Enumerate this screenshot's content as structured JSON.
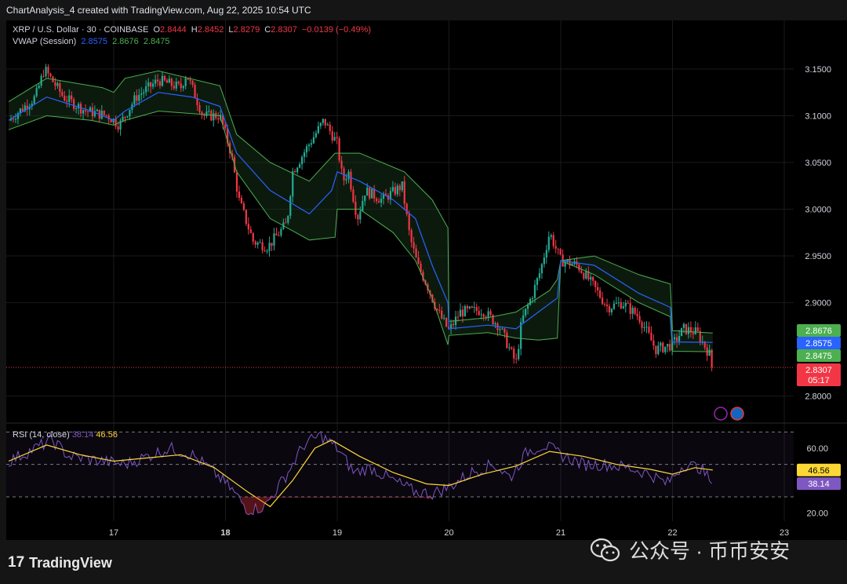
{
  "header": {
    "title": "ChartAnalysis_4 created with TradingView.com, Aug 22, 2025 10:54 UTC"
  },
  "legend": {
    "symbol": "XRP / U.S. Dollar · 30 · COINBASE",
    "o_label": "O",
    "o_value": "2.8444",
    "h_label": "H",
    "h_value": "2.8452",
    "l_label": "L",
    "l_value": "2.8279",
    "c_label": "C",
    "c_value": "2.8307",
    "change": "−0.0139 (−0.49%)",
    "vwap_label": "VWAP (Session)",
    "vwap_values": [
      "2.8575",
      "2.8676",
      "2.8475"
    ]
  },
  "rsi_legend": {
    "label": "RSI (14, close)",
    "value": "38.14",
    "ma_value": "46.56"
  },
  "colors": {
    "up": "#22ab94",
    "down": "#f23645",
    "vwap": "#2962ff",
    "band_upper": "#4caf50",
    "band_lower": "#4caf50",
    "rsi": "#7e57c2",
    "rsi_ma": "#fdd835",
    "price_line": "#f23645",
    "background": "#000000"
  },
  "price_tags": [
    {
      "name": "band-upper-tag",
      "text": "2.8676",
      "color": "#4caf50"
    },
    {
      "name": "vwap-tag",
      "text": "2.8575",
      "color": "#2962ff"
    },
    {
      "name": "band-lower-tag",
      "text": "2.8475",
      "color": "#4caf50"
    },
    {
      "name": "last-price-tag",
      "text": "2.8307",
      "color": "#f23645"
    },
    {
      "name": "countdown-tag",
      "text": "05:17",
      "color": "#f23645"
    }
  ],
  "rsi_tags": [
    {
      "name": "rsi-ma-tag",
      "text": "46.56",
      "color": "#fdd835",
      "textColor": "#000000"
    },
    {
      "name": "rsi-tag",
      "text": "38.14",
      "color": "#7e57c2",
      "textColor": "#ffffff"
    }
  ],
  "branding": {
    "logo_mark": "17",
    "logo_text": "TradingView",
    "watermark": "公众号 · 币币安安"
  },
  "chart_data": {
    "type": "candlestick",
    "symbol": "XRP / U.S. Dollar",
    "interval": "30",
    "exchange": "COINBASE",
    "last_price": 2.8307,
    "countdown": "05:17",
    "x_ticks": [
      "17",
      "18",
      "19",
      "20",
      "21",
      "22",
      "23"
    ],
    "x_tick_bold": [
      "18"
    ],
    "y_ticks": [
      "3.1500",
      "3.1000",
      "3.0500",
      "3.0000",
      "2.9500",
      "2.9000",
      "2.8000"
    ],
    "ylim": [
      2.772,
      3.202
    ],
    "xlim": [
      16.06,
      23.0
    ],
    "price_path": [
      [
        16.06,
        3.095
      ],
      [
        16.3,
        3.12
      ],
      [
        16.38,
        3.15
      ],
      [
        16.55,
        3.12
      ],
      [
        16.75,
        3.105
      ],
      [
        16.95,
        3.1
      ],
      [
        17.05,
        3.09
      ],
      [
        17.2,
        3.12
      ],
      [
        17.4,
        3.138
      ],
      [
        17.6,
        3.13
      ],
      [
        17.65,
        3.145
      ],
      [
        17.8,
        3.1
      ],
      [
        17.95,
        3.1
      ],
      [
        18.05,
        3.06
      ],
      [
        18.12,
        3.01
      ],
      [
        18.25,
        2.965
      ],
      [
        18.38,
        2.96
      ],
      [
        18.55,
        2.985
      ],
      [
        18.6,
        3.04
      ],
      [
        18.75,
        3.07
      ],
      [
        18.88,
        3.095
      ],
      [
        19.0,
        3.07
      ],
      [
        19.05,
        3.03
      ],
      [
        19.1,
        3.04
      ],
      [
        19.18,
        2.99
      ],
      [
        19.25,
        3.02
      ],
      [
        19.4,
        3.01
      ],
      [
        19.58,
        3.025
      ],
      [
        19.65,
        2.97
      ],
      [
        19.72,
        2.94
      ],
      [
        19.8,
        2.92
      ],
      [
        19.9,
        2.89
      ],
      [
        20.0,
        2.87
      ],
      [
        20.1,
        2.89
      ],
      [
        20.3,
        2.892
      ],
      [
        20.45,
        2.875
      ],
      [
        20.6,
        2.835
      ],
      [
        20.65,
        2.88
      ],
      [
        20.75,
        2.91
      ],
      [
        20.82,
        2.935
      ],
      [
        20.9,
        2.975
      ],
      [
        21.0,
        2.945
      ],
      [
        21.15,
        2.94
      ],
      [
        21.28,
        2.92
      ],
      [
        21.42,
        2.895
      ],
      [
        21.55,
        2.9
      ],
      [
        21.7,
        2.885
      ],
      [
        21.85,
        2.85
      ],
      [
        22.0,
        2.855
      ],
      [
        22.1,
        2.872
      ],
      [
        22.22,
        2.868
      ],
      [
        22.33,
        2.845
      ],
      [
        22.36,
        2.8307
      ]
    ],
    "vwap_path": [
      [
        16.06,
        3.095
      ],
      [
        16.4,
        3.12
      ],
      [
        16.8,
        3.105
      ],
      [
        17.0,
        3.095
      ],
      [
        17.1,
        3.105
      ],
      [
        17.4,
        3.125
      ],
      [
        17.7,
        3.12
      ],
      [
        17.95,
        3.11
      ],
      [
        18.1,
        3.06
      ],
      [
        18.4,
        3.02
      ],
      [
        18.75,
        2.995
      ],
      [
        18.95,
        3.02
      ],
      [
        19.0,
        3.04
      ],
      [
        19.2,
        3.03
      ],
      [
        19.5,
        3.01
      ],
      [
        19.7,
        2.99
      ],
      [
        19.85,
        2.94
      ],
      [
        19.99,
        2.9
      ],
      [
        20.0,
        2.872
      ],
      [
        20.35,
        2.876
      ],
      [
        20.6,
        2.872
      ],
      [
        20.8,
        2.89
      ],
      [
        20.97,
        2.905
      ],
      [
        21.0,
        2.945
      ],
      [
        21.3,
        2.94
      ],
      [
        21.7,
        2.91
      ],
      [
        21.98,
        2.895
      ],
      [
        22.0,
        2.858
      ],
      [
        22.36,
        2.8575
      ]
    ],
    "band_upper_path": [
      [
        16.06,
        3.115
      ],
      [
        16.4,
        3.14
      ],
      [
        16.9,
        3.13
      ],
      [
        17.0,
        3.125
      ],
      [
        17.1,
        3.14
      ],
      [
        17.4,
        3.148
      ],
      [
        17.95,
        3.132
      ],
      [
        18.1,
        3.08
      ],
      [
        18.4,
        3.05
      ],
      [
        18.75,
        3.03
      ],
      [
        18.98,
        3.06
      ],
      [
        19.0,
        3.06
      ],
      [
        19.2,
        3.06
      ],
      [
        19.6,
        3.04
      ],
      [
        19.85,
        3.01
      ],
      [
        19.99,
        2.98
      ],
      [
        20.0,
        2.88
      ],
      [
        20.35,
        2.884
      ],
      [
        20.6,
        2.89
      ],
      [
        20.9,
        2.913
      ],
      [
        20.97,
        2.925
      ],
      [
        21.0,
        2.945
      ],
      [
        21.3,
        2.95
      ],
      [
        21.7,
        2.93
      ],
      [
        21.98,
        2.92
      ],
      [
        22.0,
        2.87
      ],
      [
        22.36,
        2.8676
      ]
    ],
    "band_lower_path": [
      [
        16.06,
        3.085
      ],
      [
        16.4,
        3.1
      ],
      [
        16.8,
        3.095
      ],
      [
        17.0,
        3.09
      ],
      [
        17.1,
        3.095
      ],
      [
        17.4,
        3.105
      ],
      [
        17.95,
        3.1
      ],
      [
        18.1,
        3.04
      ],
      [
        18.4,
        2.99
      ],
      [
        18.75,
        2.967
      ],
      [
        18.98,
        2.97
      ],
      [
        19.0,
        3.0
      ],
      [
        19.2,
        3.0
      ],
      [
        19.5,
        2.975
      ],
      [
        19.7,
        2.945
      ],
      [
        19.85,
        2.905
      ],
      [
        19.99,
        2.855
      ],
      [
        20.0,
        2.865
      ],
      [
        20.35,
        2.868
      ],
      [
        20.6,
        2.862
      ],
      [
        20.8,
        2.86
      ],
      [
        20.97,
        2.862
      ],
      [
        21.0,
        2.945
      ],
      [
        21.3,
        2.93
      ],
      [
        21.7,
        2.9
      ],
      [
        21.98,
        2.885
      ],
      [
        22.0,
        2.848
      ],
      [
        22.36,
        2.8475
      ]
    ],
    "rsi": {
      "label": "RSI (14, close)",
      "ticks": [
        "60.00",
        "20.00"
      ],
      "bands": [
        70,
        50,
        30
      ],
      "ylim": [
        15,
        75
      ],
      "value": 38.14,
      "ma": 46.56,
      "rsi_path": [
        [
          16.06,
          52
        ],
        [
          16.3,
          60
        ],
        [
          16.45,
          65
        ],
        [
          16.6,
          55
        ],
        [
          16.9,
          52
        ],
        [
          17.1,
          50
        ],
        [
          17.3,
          55
        ],
        [
          17.5,
          60
        ],
        [
          17.7,
          56
        ],
        [
          17.9,
          45
        ],
        [
          18.05,
          35
        ],
        [
          18.2,
          22
        ],
        [
          18.35,
          24
        ],
        [
          18.55,
          44
        ],
        [
          18.7,
          62
        ],
        [
          18.85,
          68
        ],
        [
          19.0,
          60
        ],
        [
          19.15,
          45
        ],
        [
          19.3,
          48
        ],
        [
          19.5,
          40
        ],
        [
          19.7,
          33
        ],
        [
          19.85,
          32
        ],
        [
          20.0,
          36
        ],
        [
          20.2,
          45
        ],
        [
          20.4,
          50
        ],
        [
          20.55,
          42
        ],
        [
          20.7,
          58
        ],
        [
          20.85,
          62
        ],
        [
          21.0,
          56
        ],
        [
          21.2,
          50
        ],
        [
          21.4,
          50
        ],
        [
          21.6,
          48
        ],
        [
          21.8,
          44
        ],
        [
          21.95,
          38
        ],
        [
          22.1,
          50
        ],
        [
          22.25,
          48
        ],
        [
          22.36,
          38.14
        ]
      ],
      "ma_path": [
        [
          16.06,
          52
        ],
        [
          16.4,
          62
        ],
        [
          16.7,
          56
        ],
        [
          17.0,
          52
        ],
        [
          17.3,
          54
        ],
        [
          17.6,
          56
        ],
        [
          17.9,
          48
        ],
        [
          18.2,
          33
        ],
        [
          18.4,
          24
        ],
        [
          18.6,
          40
        ],
        [
          18.8,
          60
        ],
        [
          18.95,
          65
        ],
        [
          19.2,
          55
        ],
        [
          19.5,
          45
        ],
        [
          19.8,
          38
        ],
        [
          20.0,
          37
        ],
        [
          20.3,
          44
        ],
        [
          20.6,
          49
        ],
        [
          20.9,
          58
        ],
        [
          21.2,
          55
        ],
        [
          21.5,
          50
        ],
        [
          21.8,
          47
        ],
        [
          22.0,
          44
        ],
        [
          22.2,
          48
        ],
        [
          22.36,
          46.56
        ]
      ]
    }
  }
}
